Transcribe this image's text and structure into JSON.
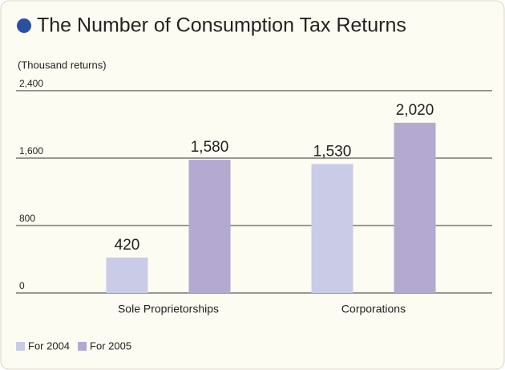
{
  "chart_data": {
    "type": "bar",
    "title": "The Number of Consumption Tax Returns",
    "y_axis_label": "(Thousand returns)",
    "categories": [
      "Sole Proprietorships",
      "Corporations"
    ],
    "series": [
      {
        "name": "For 2004",
        "color": "#c9cbe7",
        "values": [
          420,
          1530
        ],
        "value_labels": [
          "420",
          "1,530"
        ]
      },
      {
        "name": "For 2005",
        "color": "#b4a9d0",
        "values": [
          1580,
          2020
        ],
        "value_labels": [
          "1,580",
          "2,020"
        ]
      }
    ],
    "ylim": [
      0,
      2400
    ],
    "yticks": [
      0,
      800,
      {
        "value": 1600,
        "label": "1,600"
      },
      {
        "value": 2400,
        "label": "2,400"
      }
    ],
    "grid": true
  }
}
